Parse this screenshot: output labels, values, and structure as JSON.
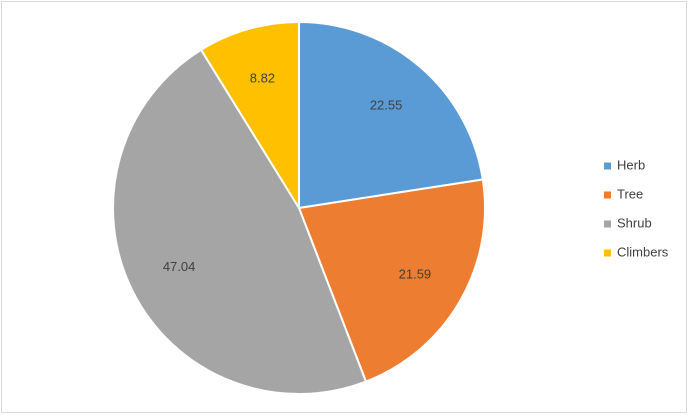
{
  "chart_data": {
    "type": "pie",
    "categories": [
      "Herb",
      "Tree",
      "Shrub",
      "Climbers"
    ],
    "values": [
      22.55,
      21.59,
      47.04,
      8.82
    ],
    "colors": [
      "#5B9BD5",
      "#ED7D31",
      "#A5A5A5",
      "#FFC000"
    ],
    "data_labels": [
      "22.55",
      "21.59",
      "47.04",
      "8.82"
    ],
    "legend": {
      "position": "right",
      "entries": [
        "Herb",
        "Tree",
        "Shrub",
        "Climbers"
      ]
    },
    "start_angle": "12 o'clock",
    "direction": "clockwise"
  }
}
